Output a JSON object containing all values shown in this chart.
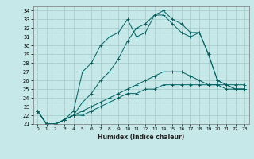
{
  "xlabel": "Humidex (Indice chaleur)",
  "x_ticks": [
    0,
    1,
    2,
    3,
    4,
    5,
    6,
    7,
    8,
    9,
    10,
    11,
    12,
    13,
    14,
    15,
    16,
    17,
    18,
    19,
    20,
    21,
    22,
    23
  ],
  "ylim": [
    21,
    34.5
  ],
  "xlim": [
    -0.5,
    23.5
  ],
  "yticks": [
    21,
    22,
    23,
    24,
    25,
    26,
    27,
    28,
    29,
    30,
    31,
    32,
    33,
    34
  ],
  "background_color": "#c6e8e8",
  "grid_color": "#a0c8c8",
  "line_color": "#006060",
  "lines": [
    {
      "x": [
        0,
        1,
        2,
        3,
        4,
        5,
        6,
        7,
        8,
        9,
        10,
        11,
        12,
        13,
        14,
        15,
        16,
        17,
        18,
        19,
        20,
        21,
        22,
        23
      ],
      "y": [
        22.5,
        21.0,
        21.0,
        21.5,
        22.5,
        27.0,
        28.0,
        30.0,
        31.0,
        31.5,
        33.0,
        31.0,
        31.5,
        33.5,
        33.5,
        32.5,
        31.5,
        31.0,
        31.5,
        29.0,
        26.0,
        25.5,
        25.0,
        25.0
      ]
    },
    {
      "x": [
        0,
        1,
        2,
        3,
        4,
        5,
        6,
        7,
        8,
        9,
        10,
        11,
        12,
        13,
        14,
        15,
        16,
        17,
        18,
        19,
        20,
        21,
        22,
        23
      ],
      "y": [
        22.5,
        21.0,
        21.0,
        21.5,
        22.0,
        23.5,
        24.5,
        26.0,
        27.0,
        28.5,
        30.5,
        32.0,
        32.5,
        33.5,
        34.0,
        33.0,
        32.5,
        31.5,
        31.5,
        29.0,
        26.0,
        25.5,
        25.0,
        25.0
      ]
    },
    {
      "x": [
        0,
        1,
        2,
        3,
        4,
        5,
        6,
        7,
        8,
        9,
        10,
        11,
        12,
        13,
        14,
        15,
        16,
        17,
        18,
        19,
        20,
        21,
        22,
        23
      ],
      "y": [
        22.5,
        21.0,
        21.0,
        21.5,
        22.0,
        22.5,
        23.0,
        23.5,
        24.0,
        24.5,
        25.0,
        25.5,
        26.0,
        26.5,
        27.0,
        27.0,
        27.0,
        26.5,
        26.0,
        25.5,
        25.5,
        25.5,
        25.5,
        25.5
      ]
    },
    {
      "x": [
        0,
        1,
        2,
        3,
        4,
        5,
        6,
        7,
        8,
        9,
        10,
        11,
        12,
        13,
        14,
        15,
        16,
        17,
        18,
        19,
        20,
        21,
        22,
        23
      ],
      "y": [
        22.5,
        21.0,
        21.0,
        21.5,
        22.0,
        22.0,
        22.5,
        23.0,
        23.5,
        24.0,
        24.5,
        24.5,
        25.0,
        25.0,
        25.5,
        25.5,
        25.5,
        25.5,
        25.5,
        25.5,
        25.5,
        25.0,
        25.0,
        25.0
      ]
    }
  ]
}
